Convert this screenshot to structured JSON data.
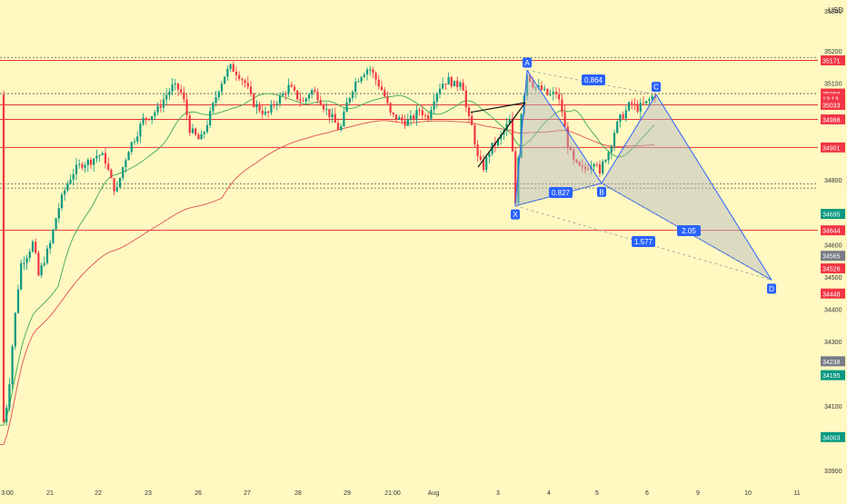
{
  "chart_data": {
    "type": "candlestick-harmonic",
    "currency": "USD",
    "ylim": [
      33880,
      35330
    ],
    "y_ticks": [
      33900,
      34100,
      34300,
      34400,
      34500,
      34600,
      34800,
      35100,
      35200
    ],
    "y_top_partial": "35300",
    "x_ticks": [
      "3:00",
      "21",
      "22",
      "23",
      "26",
      "27",
      "28",
      "29",
      "21:00",
      "Aug",
      "3",
      "4",
      "5",
      "6",
      "9",
      "10",
      "11"
    ],
    "resistance_levels": [
      35171,
      35033,
      34988,
      34901,
      34644
    ],
    "dotted_levels": [
      35180,
      35068,
      34788,
      34775
    ],
    "price_tags": [
      {
        "label": "35171",
        "value": 35171,
        "color": "#f23645"
      },
      {
        "label": "35068",
        "value": 35068,
        "color": "#f23645"
      },
      {
        "label": "13:13",
        "value": 35052,
        "color": "#f23645"
      },
      {
        "label": "35033",
        "value": 35033,
        "color": "#f23645"
      },
      {
        "label": "34988",
        "value": 34988,
        "color": "#f23645"
      },
      {
        "label": "34901",
        "value": 34901,
        "color": "#f23645"
      },
      {
        "label": "34695",
        "value": 34695,
        "color": "#089981"
      },
      {
        "label": "34644",
        "value": 34644,
        "color": "#f23645"
      },
      {
        "label": "34565",
        "value": 34565,
        "color": "#787b86"
      },
      {
        "label": "34526",
        "value": 34526,
        "color": "#f23645"
      },
      {
        "label": "34448",
        "value": 34448,
        "color": "#f23645"
      },
      {
        "label": "34238",
        "value": 34238,
        "color": "#787b86"
      },
      {
        "label": "34195",
        "value": 34195,
        "color": "#089981"
      },
      {
        "label": "34003",
        "value": 34003,
        "color": "#089981"
      }
    ],
    "harmonic_points": [
      {
        "name": "X",
        "x": "Aug 3 late",
        "value": 34720
      },
      {
        "name": "A",
        "x": "Aug 3 late",
        "value": 35140
      },
      {
        "name": "B",
        "x": "Aug 5",
        "value": 34790
      },
      {
        "name": "C",
        "x": "Aug 6",
        "value": 35065
      },
      {
        "name": "D",
        "x": "Aug 10",
        "value": 34490
      }
    ],
    "ratios": [
      "0.864",
      "0.827",
      "1.577",
      "2.05"
    ],
    "colors": {
      "background": "#fff8c1",
      "up": "#089981",
      "down": "#f23645",
      "pattern_line": "#2962ff",
      "pattern_fill": "#b2b5be",
      "ma_red": "#e05050",
      "ma_green": "#3caa50"
    }
  }
}
